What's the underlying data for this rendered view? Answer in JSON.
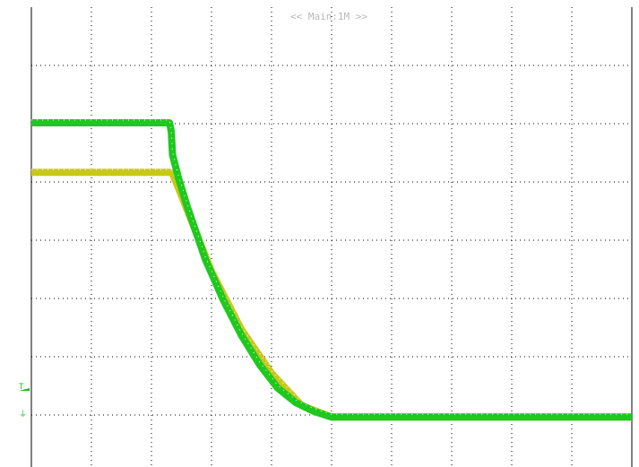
{
  "chart_data": {
    "type": "line",
    "title": "",
    "header_label": "<< Main:1M >>",
    "xlabel": "",
    "ylabel": "",
    "divisions": {
      "x": 10,
      "y": 8
    },
    "xlim": [
      0,
      10
    ],
    "ylim": [
      -4,
      4
    ],
    "grid": true,
    "markers": {
      "trigger_label": "T",
      "ground_label": "⏚"
    },
    "series": [
      {
        "color": "#c8c81a",
        "x": [
          0,
          2.3,
          2.35,
          2.5,
          3.0,
          3.5,
          4.0,
          4.5,
          5.0,
          6.0,
          8.0,
          10.0
        ],
        "y": [
          1.15,
          1.15,
          1.13,
          0.75,
          -0.55,
          -1.55,
          -2.3,
          -2.85,
          -3.05,
          -3.05,
          -3.05,
          -3.05
        ]
      },
      {
        "color": "#1ec81e",
        "x": [
          0,
          2.3,
          2.33,
          2.35,
          2.45,
          2.6,
          2.9,
          3.2,
          3.5,
          3.8,
          4.1,
          4.4,
          4.7,
          5.0,
          6.0,
          8.0,
          10.0
        ],
        "y": [
          2.0,
          2.0,
          1.85,
          1.45,
          1.05,
          0.55,
          -0.35,
          -1.05,
          -1.65,
          -2.15,
          -2.55,
          -2.8,
          -2.95,
          -3.05,
          -3.05,
          -3.05,
          -3.05
        ]
      }
    ]
  }
}
